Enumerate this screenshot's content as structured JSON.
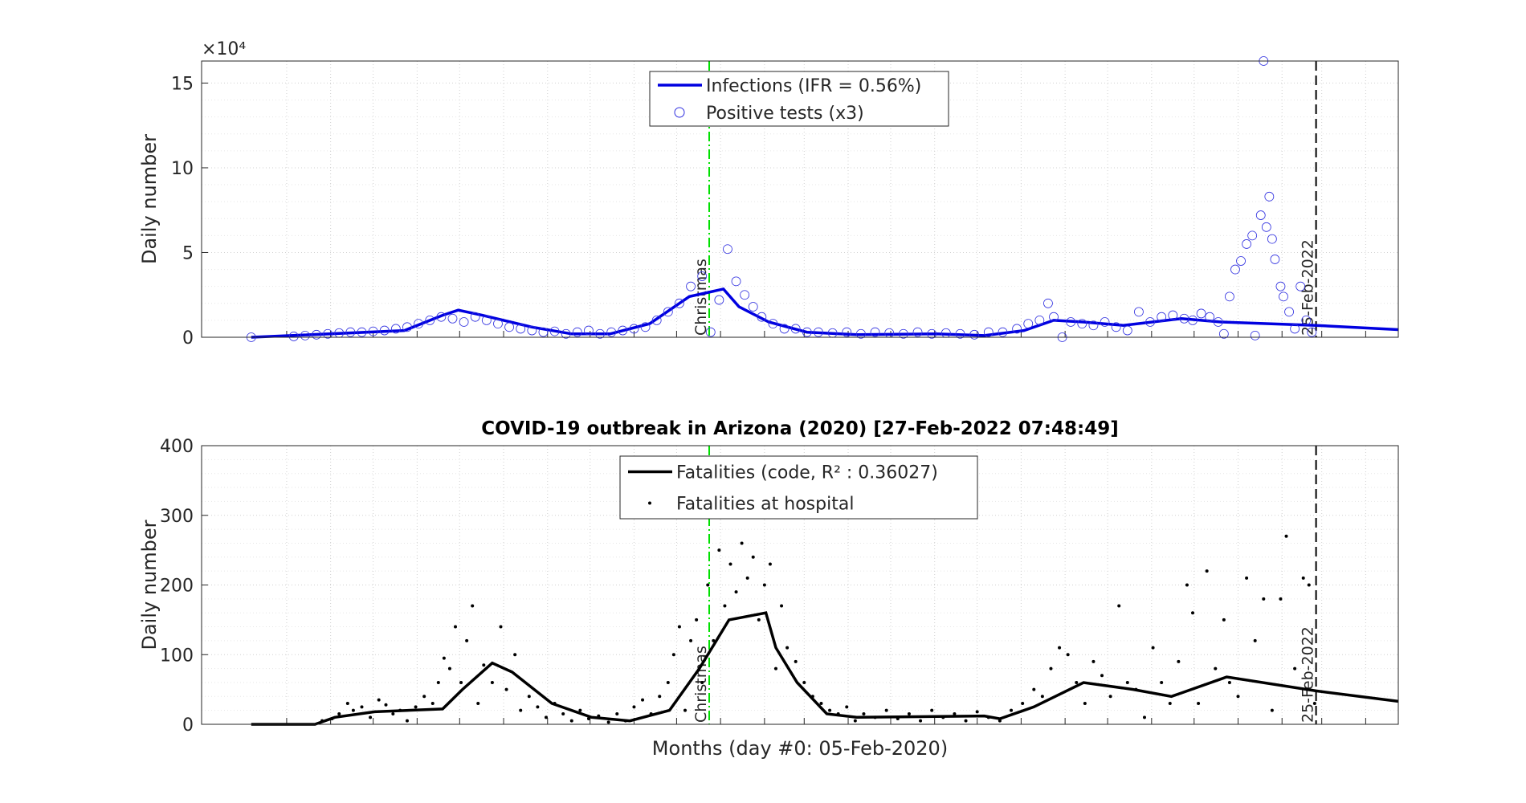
{
  "chart_data": [
    {
      "type": "line_scatter",
      "ylabel": "Daily number",
      "axis_multiplier": "×10⁴",
      "xlim": [
        -35,
        809
      ],
      "ylim": [
        0,
        16.3
      ],
      "yticks": [
        0,
        5,
        10,
        15
      ],
      "xticks": [
        25,
        56,
        86,
        117,
        147,
        178,
        209,
        239,
        270,
        300,
        331,
        362,
        390,
        421,
        451,
        482,
        512,
        543,
        574,
        604,
        635,
        665,
        696,
        727,
        755,
        786
      ],
      "grid": true,
      "annotations": [
        {
          "x": 323,
          "label": "Christmas",
          "color": "#00e000"
        },
        {
          "x": 751,
          "label": "25-Feb-2022",
          "color": "#000000"
        }
      ],
      "series": [
        {
          "name": "Infections (IFR = 0.56%)",
          "kind": "line",
          "color": "#0000e0",
          "x": [
            0,
            28,
            108,
            135,
            146,
            163,
            198,
            226,
            253,
            281,
            309,
            333,
            344,
            365,
            392,
            427,
            483,
            517,
            545,
            566,
            587,
            615,
            656,
            684,
            751,
            809
          ],
          "values": [
            0,
            0.1,
            0.4,
            1.3,
            1.6,
            1.3,
            0.6,
            0.2,
            0.2,
            0.8,
            2.4,
            2.85,
            1.8,
            0.9,
            0.3,
            0.15,
            0.2,
            0.1,
            0.4,
            1.0,
            0.9,
            0.7,
            1.1,
            0.9,
            0.7,
            0.45
          ]
        },
        {
          "name": "Positive tests (x3)",
          "kind": "circles",
          "color": "#3030e0",
          "x": [
            0,
            30,
            38,
            46,
            54,
            62,
            70,
            78,
            86,
            94,
            102,
            110,
            118,
            126,
            134,
            142,
            150,
            158,
            166,
            174,
            182,
            190,
            198,
            206,
            214,
            222,
            230,
            238,
            246,
            254,
            262,
            270,
            278,
            286,
            294,
            302,
            310,
            318,
            324,
            330,
            336,
            342,
            348,
            354,
            360,
            368,
            376,
            384,
            392,
            400,
            410,
            420,
            430,
            440,
            450,
            460,
            470,
            480,
            490,
            500,
            510,
            520,
            530,
            540,
            548,
            556,
            562,
            566,
            572,
            578,
            586,
            594,
            602,
            610,
            618,
            626,
            634,
            642,
            650,
            658,
            664,
            670,
            676,
            682,
            686,
            690,
            694,
            698,
            702,
            706,
            708,
            712,
            714,
            716,
            718,
            720,
            722,
            726,
            728,
            732,
            736,
            740,
            744,
            748
          ],
          "values": [
            0,
            0.05,
            0.1,
            0.15,
            0.2,
            0.25,
            0.3,
            0.3,
            0.35,
            0.4,
            0.5,
            0.6,
            0.8,
            1.0,
            1.2,
            1.1,
            0.9,
            1.2,
            1.0,
            0.8,
            0.6,
            0.5,
            0.4,
            0.3,
            0.35,
            0.2,
            0.3,
            0.4,
            0.2,
            0.3,
            0.4,
            0.5,
            0.6,
            1.0,
            1.5,
            2.0,
            3.0,
            3.6,
            0.3,
            2.2,
            5.2,
            3.3,
            2.5,
            1.8,
            1.2,
            0.8,
            0.5,
            0.5,
            0.3,
            0.3,
            0.25,
            0.3,
            0.2,
            0.3,
            0.25,
            0.2,
            0.3,
            0.2,
            0.25,
            0.2,
            0.15,
            0.3,
            0.3,
            0.5,
            0.8,
            1.0,
            2.0,
            1.2,
            0.0,
            0.9,
            0.8,
            0.7,
            0.9,
            0.6,
            0.4,
            1.5,
            0.9,
            1.2,
            1.3,
            1.1,
            1.0,
            1.4,
            1.2,
            0.9,
            0.2,
            2.4,
            4.0,
            4.5,
            5.5,
            6.0,
            0.1,
            7.2,
            16.3,
            6.5,
            8.3,
            5.8,
            4.6,
            3.0,
            2.4,
            1.5,
            0.5,
            3.0,
            1.0,
            0.3
          ]
        }
      ]
    },
    {
      "type": "line_scatter",
      "title": "COVID-19 outbreak in Arizona (2020) [27-Feb-2022 07:48:49]",
      "ylabel": "Daily number",
      "xlabel": "Months (day #0: 05-Feb-2020)",
      "xlim": [
        -35,
        809
      ],
      "ylim": [
        0,
        400
      ],
      "yticks": [
        0,
        100,
        200,
        300,
        400
      ],
      "xticks": [
        25,
        56,
        86,
        117,
        147,
        178,
        209,
        239,
        270,
        300,
        331,
        362,
        390,
        421,
        451,
        482,
        512,
        543,
        574,
        604,
        635,
        665,
        696,
        727,
        755,
        786
      ],
      "grid": true,
      "annotations": [
        {
          "x": 323,
          "label": "Christmas",
          "color": "#00e000"
        },
        {
          "x": 751,
          "label": "25-Feb-2022",
          "color": "#000000"
        }
      ],
      "series": [
        {
          "name": "Fatalities (code, R² : 0.36027)",
          "kind": "line",
          "color": "#000000",
          "x": [
            0,
            45,
            59,
            87,
            135,
            149,
            170,
            184,
            212,
            240,
            267,
            295,
            316,
            337,
            363,
            370,
            385,
            406,
            427,
            517,
            528,
            552,
            587,
            622,
            649,
            656,
            688,
            751,
            809
          ],
          "values": [
            0,
            0,
            10,
            18,
            22,
            50,
            88,
            75,
            30,
            10,
            5,
            20,
            80,
            150,
            160,
            110,
            60,
            15,
            10,
            12,
            8,
            25,
            60,
            50,
            40,
            45,
            68,
            48,
            33
          ]
        },
        {
          "name": "Fatalities at hospital",
          "kind": "dots",
          "color": "#000000",
          "x": [
            50,
            57,
            62,
            68,
            72,
            78,
            84,
            90,
            95,
            100,
            105,
            110,
            116,
            122,
            128,
            132,
            136,
            140,
            144,
            148,
            152,
            156,
            160,
            164,
            170,
            176,
            180,
            186,
            190,
            196,
            202,
            208,
            214,
            220,
            226,
            232,
            238,
            245,
            252,
            258,
            264,
            270,
            276,
            282,
            288,
            294,
            298,
            302,
            306,
            310,
            314,
            318,
            322,
            326,
            330,
            334,
            338,
            342,
            346,
            350,
            354,
            358,
            362,
            366,
            370,
            374,
            378,
            384,
            390,
            396,
            402,
            408,
            414,
            420,
            426,
            432,
            440,
            448,
            456,
            464,
            472,
            480,
            488,
            496,
            504,
            512,
            520,
            528,
            536,
            544,
            552,
            558,
            564,
            570,
            576,
            582,
            588,
            594,
            600,
            606,
            612,
            618,
            624,
            630,
            636,
            642,
            648,
            654,
            660,
            664,
            668,
            674,
            680,
            686,
            690,
            696,
            702,
            708,
            714,
            720,
            726,
            730,
            736,
            742,
            746,
            750
          ],
          "values": [
            5,
            8,
            15,
            30,
            20,
            25,
            10,
            35,
            28,
            15,
            20,
            5,
            25,
            40,
            30,
            60,
            95,
            80,
            140,
            60,
            120,
            170,
            30,
            85,
            60,
            140,
            50,
            100,
            20,
            40,
            25,
            10,
            30,
            15,
            5,
            20,
            8,
            12,
            3,
            15,
            5,
            25,
            35,
            15,
            40,
            60,
            100,
            140,
            20,
            120,
            150,
            60,
            200,
            120,
            250,
            170,
            230,
            190,
            260,
            210,
            240,
            150,
            200,
            230,
            80,
            170,
            110,
            90,
            60,
            40,
            30,
            20,
            15,
            25,
            5,
            15,
            10,
            20,
            8,
            15,
            5,
            20,
            10,
            15,
            5,
            18,
            10,
            5,
            20,
            30,
            50,
            40,
            80,
            110,
            100,
            60,
            30,
            90,
            70,
            40,
            170,
            60,
            50,
            10,
            110,
            60,
            30,
            90,
            200,
            160,
            30,
            220,
            80,
            150,
            60,
            40,
            210,
            120,
            180,
            20,
            180,
            270,
            80,
            210,
            200,
            30
          ]
        }
      ]
    }
  ]
}
